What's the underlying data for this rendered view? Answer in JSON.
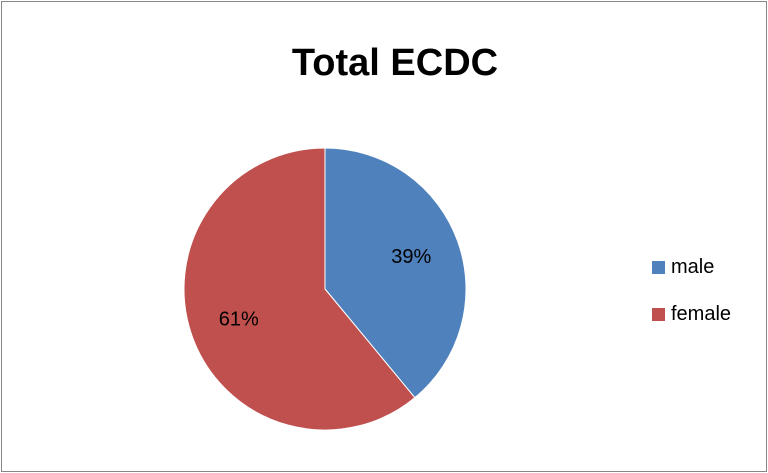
{
  "chart_data": {
    "type": "pie",
    "title": "Total ECDC",
    "categories": [
      "male",
      "female"
    ],
    "values": [
      39,
      61
    ],
    "data_labels": [
      "39%",
      "61%"
    ],
    "colors": [
      "#4F81BD",
      "#C0504D"
    ],
    "legend_position": "right"
  }
}
